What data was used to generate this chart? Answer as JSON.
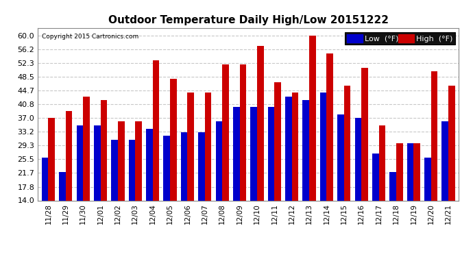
{
  "title": "Outdoor Temperature Daily High/Low 20151222",
  "copyright": "Copyright 2015 Cartronics.com",
  "dates": [
    "11/28",
    "11/29",
    "11/30",
    "12/01",
    "12/02",
    "12/03",
    "12/04",
    "12/05",
    "12/06",
    "12/07",
    "12/08",
    "12/09",
    "12/10",
    "12/11",
    "12/12",
    "12/13",
    "12/14",
    "12/15",
    "12/16",
    "12/17",
    "12/18",
    "12/19",
    "12/20",
    "12/21"
  ],
  "low": [
    26,
    22,
    35,
    35,
    31,
    31,
    34,
    32,
    33,
    33,
    36,
    40,
    40,
    40,
    43,
    42,
    44,
    38,
    37,
    27,
    22,
    30,
    26,
    36
  ],
  "high": [
    37,
    39,
    43,
    42,
    36,
    36,
    53,
    48,
    44,
    44,
    52,
    52,
    57,
    47,
    44,
    60,
    55,
    46,
    51,
    35,
    30,
    30,
    50,
    46
  ],
  "low_color": "#0000cc",
  "high_color": "#cc0000",
  "background_color": "#ffffff",
  "plot_bg_color": "#ffffff",
  "grid_color": "#c8c8c8",
  "ylim_min": 14.0,
  "ylim_max": 62.0,
  "yticks": [
    14.0,
    17.8,
    21.7,
    25.5,
    29.3,
    33.2,
    37.0,
    40.8,
    44.7,
    48.5,
    52.3,
    56.2,
    60.0
  ],
  "legend_low_label": "Low  (°F)",
  "legend_high_label": "High  (°F)"
}
